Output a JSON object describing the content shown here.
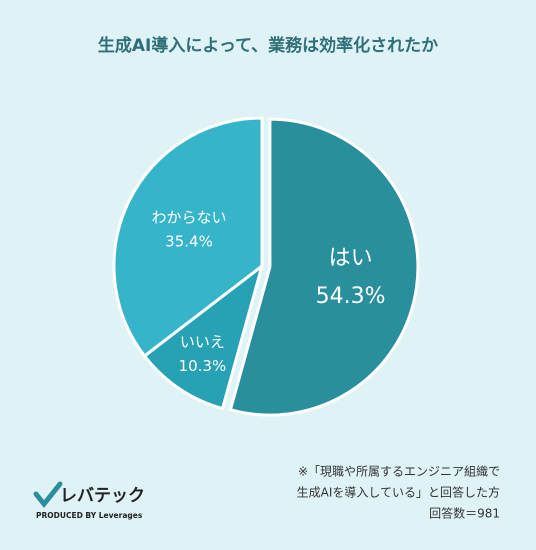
{
  "chart_data": {
    "type": "pie",
    "title": "生成AI導入によって、業務は効率化されたか",
    "categories": [
      "はい",
      "いいえ",
      "わからない"
    ],
    "values": [
      54.3,
      10.3,
      35.4
    ],
    "value_labels": [
      "54.3%",
      "10.3%",
      "35.4%"
    ],
    "colors": [
      "#2a8f9c",
      "#27a2b4",
      "#35b4ca"
    ],
    "annotations": [
      "※「現職や所属するエンジニア組織で",
      "生成AIを導入している」と回答した方",
      "回答数＝981"
    ]
  },
  "branding": {
    "name": "レバテック",
    "tagline": "PRODUCED BY Leverages"
  }
}
